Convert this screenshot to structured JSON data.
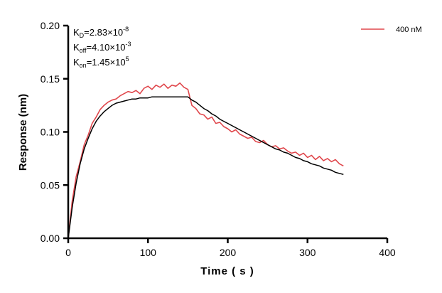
{
  "chart_data": {
    "type": "line",
    "title": "",
    "xlabel": "Time ( s )",
    "ylabel": "Response (nm)",
    "xlim": [
      0,
      400
    ],
    "ylim": [
      0,
      0.2
    ],
    "xticks": [
      "0",
      "100",
      "200",
      "300",
      "400"
    ],
    "yticks": [
      "0.00",
      "0.05",
      "0.10",
      "0.15",
      "0.20"
    ],
    "grid": false,
    "legend_placement": "top-right",
    "annotations": {
      "kd": {
        "label": "K",
        "sub": "D",
        "value": "=2.83×10",
        "exp": "-8"
      },
      "koff": {
        "label": "K",
        "sub": "off",
        "value": "=4.10×10",
        "exp": "-3"
      },
      "kon": {
        "label": "K",
        "sub": "on",
        "value": "=1.45×10",
        "exp": "5"
      }
    },
    "series": [
      {
        "name": "400 nM",
        "color": "#e0474c",
        "x": [
          0,
          5,
          10,
          15,
          20,
          25,
          30,
          35,
          40,
          45,
          50,
          55,
          60,
          65,
          70,
          75,
          80,
          85,
          90,
          95,
          100,
          105,
          110,
          115,
          120,
          125,
          130,
          135,
          140,
          145,
          150,
          155,
          160,
          165,
          170,
          175,
          180,
          185,
          190,
          195,
          200,
          205,
          210,
          215,
          220,
          225,
          230,
          235,
          240,
          245,
          250,
          255,
          260,
          265,
          270,
          275,
          280,
          285,
          290,
          295,
          300,
          305,
          310,
          315,
          320,
          325,
          330,
          335,
          340,
          345
        ],
        "y": [
          0,
          0.035,
          0.058,
          0.072,
          0.088,
          0.097,
          0.108,
          0.114,
          0.121,
          0.125,
          0.128,
          0.13,
          0.131,
          0.134,
          0.136,
          0.138,
          0.137,
          0.139,
          0.136,
          0.141,
          0.143,
          0.14,
          0.144,
          0.142,
          0.145,
          0.141,
          0.144,
          0.143,
          0.146,
          0.142,
          0.14,
          0.125,
          0.122,
          0.117,
          0.116,
          0.112,
          0.114,
          0.108,
          0.109,
          0.105,
          0.103,
          0.1,
          0.102,
          0.098,
          0.096,
          0.094,
          0.095,
          0.091,
          0.09,
          0.092,
          0.088,
          0.086,
          0.087,
          0.084,
          0.085,
          0.082,
          0.08,
          0.081,
          0.078,
          0.08,
          0.076,
          0.078,
          0.074,
          0.077,
          0.073,
          0.075,
          0.072,
          0.074,
          0.07,
          0.068
        ]
      },
      {
        "color": "#000000",
        "x": [
          0,
          5,
          10,
          15,
          20,
          25,
          30,
          35,
          40,
          45,
          50,
          55,
          60,
          65,
          70,
          75,
          80,
          85,
          90,
          95,
          100,
          105,
          110,
          115,
          120,
          125,
          130,
          135,
          140,
          145,
          150,
          155,
          160,
          165,
          170,
          175,
          180,
          185,
          190,
          195,
          200,
          205,
          210,
          215,
          220,
          225,
          230,
          235,
          240,
          245,
          250,
          255,
          260,
          265,
          270,
          275,
          280,
          285,
          290,
          295,
          300,
          305,
          310,
          315,
          320,
          325,
          330,
          335,
          340,
          345
        ],
        "y": [
          0,
          0.029,
          0.052,
          0.07,
          0.084,
          0.094,
          0.103,
          0.11,
          0.115,
          0.119,
          0.122,
          0.125,
          0.127,
          0.128,
          0.129,
          0.13,
          0.131,
          0.131,
          0.132,
          0.132,
          0.132,
          0.133,
          0.133,
          0.133,
          0.133,
          0.133,
          0.133,
          0.133,
          0.133,
          0.133,
          0.133,
          0.13,
          0.128,
          0.125,
          0.122,
          0.12,
          0.117,
          0.115,
          0.112,
          0.11,
          0.108,
          0.106,
          0.104,
          0.102,
          0.1,
          0.098,
          0.096,
          0.094,
          0.092,
          0.09,
          0.088,
          0.086,
          0.084,
          0.083,
          0.081,
          0.08,
          0.078,
          0.076,
          0.075,
          0.073,
          0.072,
          0.07,
          0.069,
          0.068,
          0.066,
          0.065,
          0.064,
          0.062,
          0.061,
          0.06
        ]
      }
    ]
  }
}
